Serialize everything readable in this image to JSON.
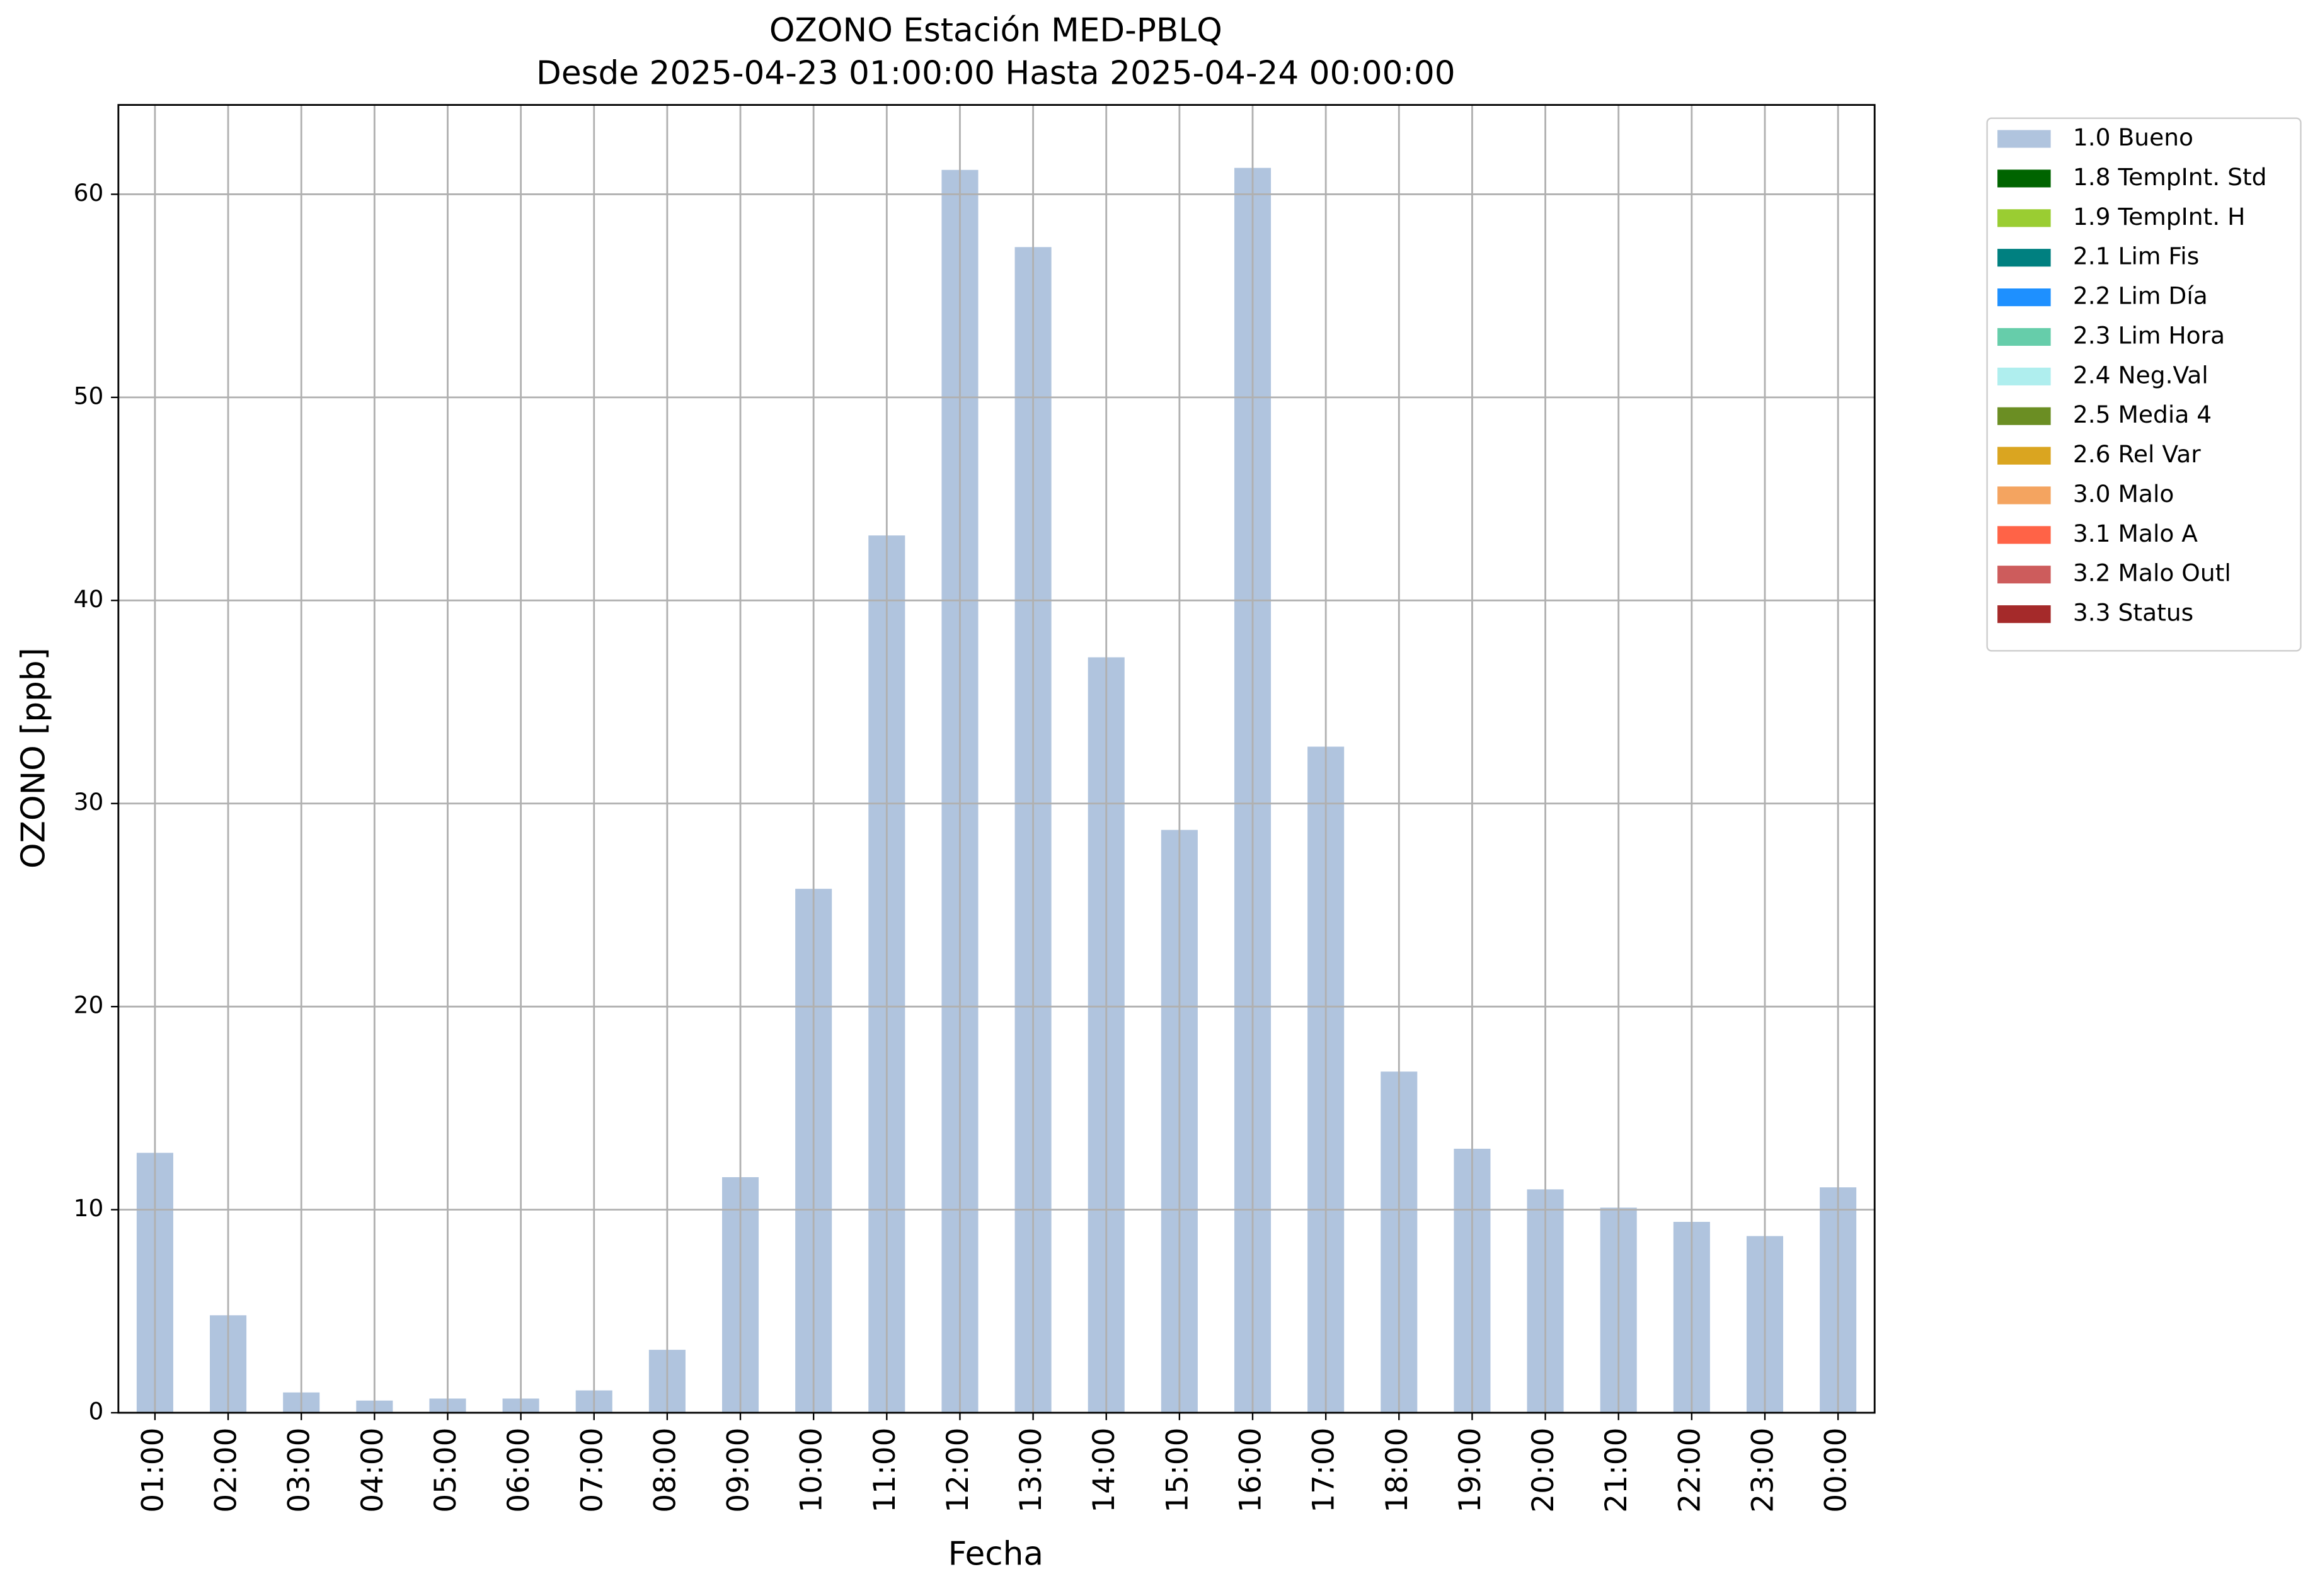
{
  "chart_data": {
    "type": "bar",
    "title": "OZONO Estación MED-PBLQ",
    "subtitle": "Desde 2025-04-23 01:00:00 Hasta 2025-04-24 00:00:00",
    "x_label": "Fecha",
    "y_label": "OZONO [ppb]",
    "categories": [
      "01:00",
      "02:00",
      "03:00",
      "04:00",
      "05:00",
      "06:00",
      "07:00",
      "08:00",
      "09:00",
      "10:00",
      "11:00",
      "12:00",
      "13:00",
      "14:00",
      "15:00",
      "16:00",
      "17:00",
      "18:00",
      "19:00",
      "20:00",
      "21:00",
      "22:00",
      "23:00",
      "00:00"
    ],
    "series": [
      {
        "name": "1.0 Bueno",
        "color": "#b0c4de",
        "values": [
          12.8,
          4.8,
          1.0,
          0.6,
          0.7,
          0.7,
          1.1,
          3.1,
          11.6,
          25.8,
          43.2,
          61.2,
          57.4,
          37.2,
          28.7,
          61.3,
          32.8,
          16.8,
          13.0,
          11.0,
          10.1,
          9.4,
          8.7,
          11.1
        ]
      },
      {
        "name": "1.8 TempInt. Std",
        "color": "#006400"
      },
      {
        "name": "1.9 TempInt. H",
        "color": "#9acd32"
      },
      {
        "name": "2.1 Lim Fis",
        "color": "#008080"
      },
      {
        "name": "2.2 Lim Día",
        "color": "#1e90ff"
      },
      {
        "name": "2.3 Lim Hora",
        "color": "#66cdaa"
      },
      {
        "name": "2.4 Neg.Val",
        "color": "#afeeee"
      },
      {
        "name": "2.5 Media 4",
        "color": "#6b8e23"
      },
      {
        "name": "2.6 Rel Var",
        "color": "#daa520"
      },
      {
        "name": "3.0 Malo",
        "color": "#f4a460"
      },
      {
        "name": "3.1 Malo A",
        "color": "#ff6347"
      },
      {
        "name": "3.2 Malo Outl",
        "color": "#cd5c5c"
      },
      {
        "name": "3.3 Status",
        "color": "#a52a2a"
      }
    ],
    "ylim": [
      0,
      64.4
    ],
    "yticks": [
      0,
      10,
      20,
      30,
      40,
      50,
      60
    ],
    "grid": true,
    "legend": "outside-upper-right"
  }
}
